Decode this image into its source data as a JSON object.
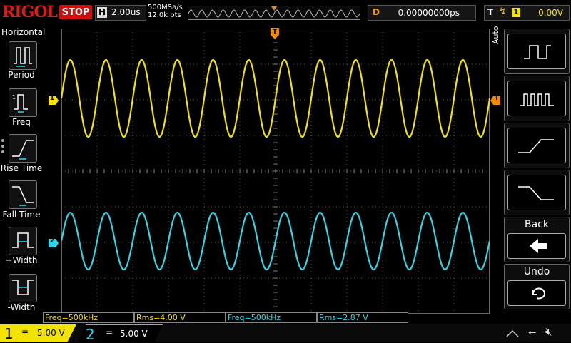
{
  "brand": "RIGOL",
  "run_state": "STOP",
  "horizontal": {
    "key": "H",
    "scale": "2.00us",
    "sample_rate": "500MSa/s",
    "points": "12.0k pts"
  },
  "delay": {
    "key": "D",
    "value": "0.00000000ps"
  },
  "trigger": {
    "key": "T",
    "edge_icon": "rising-edge-icon",
    "source": "1",
    "level": "0.00V"
  },
  "left_menu": {
    "title": "Horizontal",
    "items": [
      {
        "label": "Period",
        "icon": "period-measure-icon"
      },
      {
        "label": "Freq",
        "icon": "freq-measure-icon"
      },
      {
        "label": "Rise Time",
        "icon": "rise-time-icon"
      },
      {
        "label": "Fall Time",
        "icon": "fall-time-icon"
      },
      {
        "label": "+Width",
        "icon": "positive-width-icon"
      },
      {
        "label": "-Width",
        "icon": "negative-width-icon"
      }
    ]
  },
  "right_menu": {
    "mode": "Auto",
    "buttons": [
      {
        "name": "single-pulse",
        "icon": "single-pulse-icon"
      },
      {
        "name": "pulse-train",
        "icon": "pulse-train-icon"
      },
      {
        "name": "rising-edge",
        "icon": "rising-edge-icon"
      },
      {
        "name": "falling-edge",
        "icon": "falling-edge-icon"
      },
      {
        "name": "back",
        "label": "Back",
        "icon": "back-arrow-icon"
      },
      {
        "name": "undo",
        "label": "Undo",
        "icon": "undo-icon"
      }
    ]
  },
  "measurements": [
    {
      "text": "Freq=500kHz",
      "channel": 1
    },
    {
      "text": "Rms=4.00 V",
      "channel": 1
    },
    {
      "text": "Freq=500kHz",
      "channel": 2
    },
    {
      "text": "Rms=2.87 V",
      "channel": 2
    }
  ],
  "channels": [
    {
      "number": "1",
      "coupling": "=",
      "scale": "5.00 V",
      "color": "#f2e400"
    },
    {
      "number": "2",
      "coupling": "=",
      "scale": "5.00 V",
      "color": "#2cd8e8"
    }
  ],
  "trace_markers": {
    "ch1": "1",
    "ch2": "2",
    "trigger_top": "T",
    "trigger_right": "T"
  },
  "waveforms": [
    {
      "channel": 1,
      "shape": "sine",
      "cycles_on_screen": 12
    },
    {
      "channel": 2,
      "shape": "sine",
      "cycles_on_screen": 12
    }
  ],
  "colors": {
    "ch1": "#f2e400",
    "ch2": "#2cd8e8",
    "trigger": "#f08a00",
    "brand": "#e01818",
    "stop": "#d01010"
  }
}
